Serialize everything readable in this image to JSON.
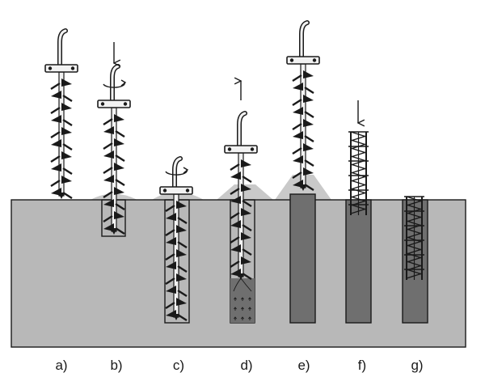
{
  "steps": [
    {
      "label": "a)",
      "stage": "auger above ground"
    },
    {
      "label": "b)",
      "stage": "auger drilling, shallow"
    },
    {
      "label": "c)",
      "stage": "auger drilled to full depth"
    },
    {
      "label": "d)",
      "stage": "auger withdrawn while concrete is pumped"
    },
    {
      "label": "e)",
      "stage": "auger removed, concrete column"
    },
    {
      "label": "f)",
      "stage": "reinforcement cage lowered"
    },
    {
      "label": "g)",
      "stage": "cage installed in pile"
    }
  ],
  "colors": {
    "ground": "#b8b8b8",
    "concrete": "#6f6f6f",
    "spoil": "#c9c9c9",
    "outline": "#1a1a1a"
  }
}
